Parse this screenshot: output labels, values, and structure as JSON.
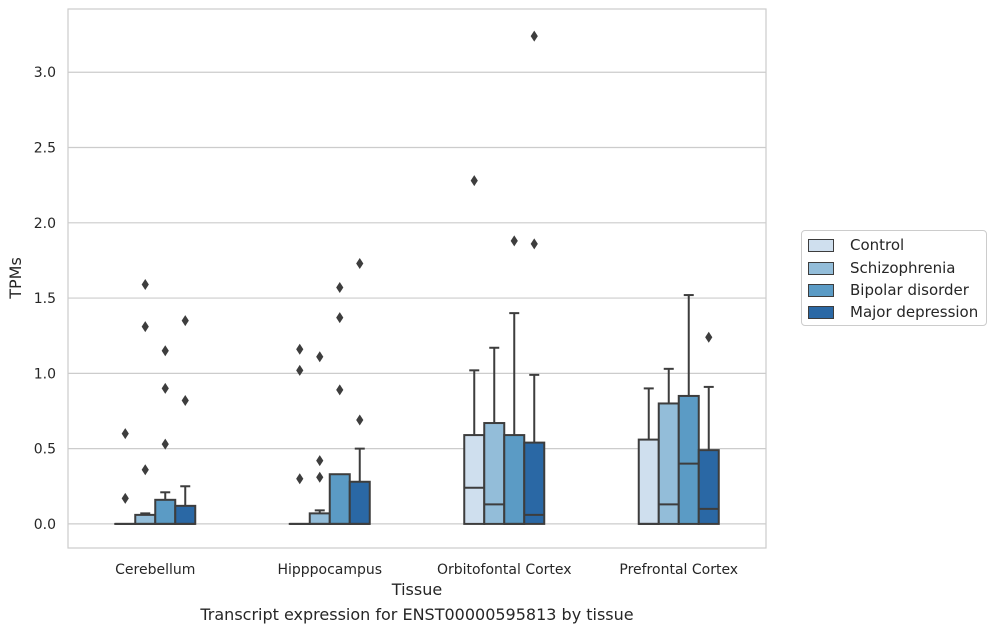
{
  "chart_data": {
    "type": "boxplot",
    "xlabel": "Tissue",
    "ylabel": "TPMs",
    "ylim": [
      -0.16,
      3.42
    ],
    "yticks": [
      "0.0",
      "0.5",
      "1.0",
      "1.5",
      "2.0",
      "2.5",
      "3.0"
    ],
    "grid": "horizontal",
    "legend_position": "right",
    "categories": [
      "Cerebellum",
      "Hipppocampus",
      "Orbitofontal Cortex",
      "Prefrontal Cortex"
    ],
    "series": [
      {
        "name": "Control",
        "color": "#cfdfee",
        "boxes": [
          {
            "whislo": 0,
            "q1": 0,
            "median": 0,
            "q3": 0,
            "whishi": 0,
            "fliers": [
              0.6,
              0.17
            ]
          },
          {
            "whislo": 0,
            "q1": 0,
            "median": 0,
            "q3": 0,
            "whishi": 0,
            "fliers": [
              1.16,
              1.02,
              0.3
            ]
          },
          {
            "whislo": 0,
            "q1": 0,
            "median": 0.24,
            "q3": 0.59,
            "whishi": 1.02,
            "fliers": [
              2.28
            ]
          },
          {
            "whislo": 0,
            "q1": 0,
            "median": 0,
            "q3": 0.56,
            "whishi": 0.9,
            "fliers": []
          }
        ]
      },
      {
        "name": "Schizophrenia",
        "color": "#93bdd9",
        "boxes": [
          {
            "whislo": 0,
            "q1": 0,
            "median": 0,
            "q3": 0.06,
            "whishi": 0.07,
            "fliers": [
              1.59,
              1.31,
              0.36
            ]
          },
          {
            "whislo": 0,
            "q1": 0,
            "median": 0,
            "q3": 0.07,
            "whishi": 0.09,
            "fliers": [
              1.11,
              0.42,
              0.31
            ]
          },
          {
            "whislo": 0,
            "q1": 0,
            "median": 0.13,
            "q3": 0.67,
            "whishi": 1.17,
            "fliers": []
          },
          {
            "whislo": 0,
            "q1": 0,
            "median": 0.13,
            "q3": 0.8,
            "whishi": 1.03,
            "fliers": []
          }
        ]
      },
      {
        "name": "Bipolar disorder",
        "color": "#5b9bc5",
        "boxes": [
          {
            "whislo": 0,
            "q1": 0,
            "median": 0,
            "q3": 0.16,
            "whishi": 0.21,
            "fliers": [
              1.15,
              0.9,
              0.53
            ]
          },
          {
            "whislo": 0,
            "q1": 0,
            "median": 0,
            "q3": 0.33,
            "whishi": 0.33,
            "fliers": [
              1.57,
              1.37,
              0.89
            ]
          },
          {
            "whislo": 0,
            "q1": 0,
            "median": 0,
            "q3": 0.59,
            "whishi": 1.4,
            "fliers": [
              1.88
            ]
          },
          {
            "whislo": 0,
            "q1": 0,
            "median": 0.4,
            "q3": 0.85,
            "whishi": 1.52,
            "fliers": []
          }
        ]
      },
      {
        "name": "Major depression",
        "color": "#2a68a5",
        "boxes": [
          {
            "whislo": 0,
            "q1": 0,
            "median": 0,
            "q3": 0.12,
            "whishi": 0.25,
            "fliers": [
              1.35,
              0.82
            ]
          },
          {
            "whislo": 0,
            "q1": 0,
            "median": 0,
            "q3": 0.28,
            "whishi": 0.5,
            "fliers": [
              1.73,
              0.69
            ]
          },
          {
            "whislo": 0,
            "q1": 0,
            "median": 0.06,
            "q3": 0.54,
            "whishi": 0.99,
            "fliers": [
              3.24,
              1.86
            ]
          },
          {
            "whislo": 0,
            "q1": 0,
            "median": 0.1,
            "q3": 0.49,
            "whishi": 0.91,
            "fliers": [
              1.24
            ]
          }
        ]
      }
    ]
  },
  "caption": "Transcript expression for ENST00000595813 by tissue"
}
